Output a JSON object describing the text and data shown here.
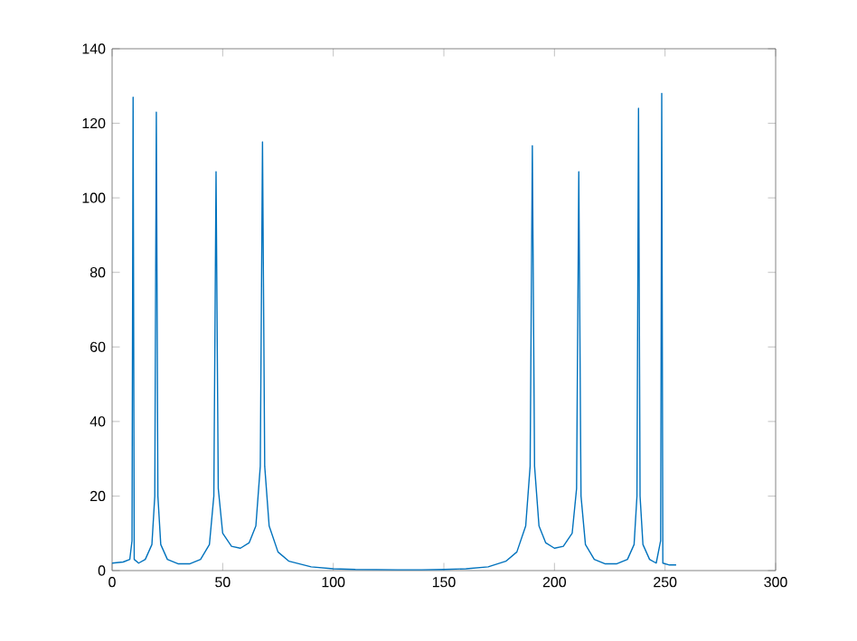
{
  "chart_data": {
    "type": "line",
    "color": "#0072bd",
    "xlim": [
      0,
      300
    ],
    "ylim": [
      0,
      140
    ],
    "xticks": [
      0,
      50,
      100,
      150,
      200,
      250,
      300
    ],
    "yticks": [
      0,
      20,
      40,
      60,
      80,
      100,
      120,
      140
    ],
    "grid": false,
    "marker": "none",
    "line_style": "solid",
    "x": [
      0,
      5,
      8,
      9,
      9.5,
      10,
      12,
      15,
      18,
      19.3,
      20,
      20.7,
      22,
      25,
      30,
      35,
      40,
      44,
      46,
      47,
      48,
      50,
      54,
      58,
      62,
      65,
      67,
      68,
      69,
      71,
      75,
      80,
      90,
      100,
      110,
      129,
      140,
      150,
      160,
      170,
      178,
      183,
      187,
      189,
      190,
      191,
      193,
      196,
      200,
      204,
      208,
      210,
      211,
      212,
      214,
      218,
      223,
      228,
      233,
      236,
      237.3,
      238,
      238.7,
      240,
      243,
      246,
      248,
      248.5,
      249,
      252,
      255
    ],
    "values": [
      2.0,
      2.3,
      3.0,
      8,
      127,
      3,
      2.0,
      3,
      7,
      20,
      123,
      20,
      7,
      3,
      1.8,
      1.8,
      3,
      7,
      20,
      107,
      22,
      10,
      6.5,
      6,
      7.5,
      12,
      28,
      115,
      28,
      12,
      5,
      2.5,
      1,
      0.5,
      0.3,
      0.2,
      0.2,
      0.3,
      0.5,
      1,
      2.5,
      5,
      12,
      28,
      114,
      28,
      12,
      7.5,
      6,
      6.5,
      10,
      22,
      107,
      20,
      7,
      3,
      1.8,
      1.8,
      3,
      7,
      20,
      124,
      20,
      7,
      3,
      2,
      8,
      128,
      2,
      1.5,
      1.5
    ]
  }
}
